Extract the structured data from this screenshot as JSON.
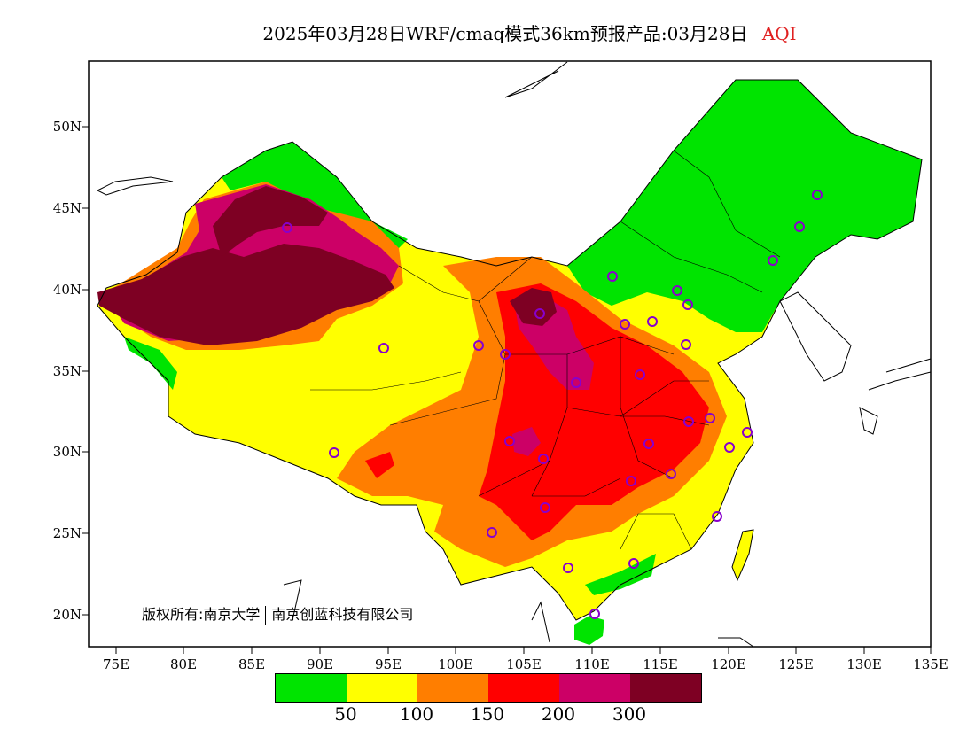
{
  "title": {
    "main": "2025年03月28日WRF/cmaq模式36km预报产品:03月28日",
    "variable": "AQI"
  },
  "copyright": {
    "part1": "版权所有:南京大学",
    "part2": "南京创蓝科技有限公司"
  },
  "axes": {
    "lat_ticks": [
      "50N",
      "45N",
      "40N",
      "35N",
      "30N",
      "25N",
      "20N"
    ],
    "lon_ticks": [
      "75E",
      "80E",
      "85E",
      "90E",
      "95E",
      "100E",
      "105E",
      "110E",
      "115E",
      "120E",
      "125E",
      "130E",
      "135E"
    ],
    "lat_range": [
      18,
      54
    ],
    "lon_range": [
      73,
      135
    ]
  },
  "legend": {
    "colors": [
      "#00e400",
      "#ffff00",
      "#ff7e00",
      "#ff0000",
      "#cc0066",
      "#7e0023"
    ],
    "labels": [
      "50",
      "100",
      "150",
      "200",
      "300"
    ]
  },
  "colors": {
    "good": "#00e400",
    "moderate": "#ffff00",
    "usg": "#ff7e00",
    "unhealthy": "#ff0000",
    "very_unhealthy": "#cc0066",
    "hazardous": "#7e0023",
    "station_marker": "#8800cc"
  }
}
